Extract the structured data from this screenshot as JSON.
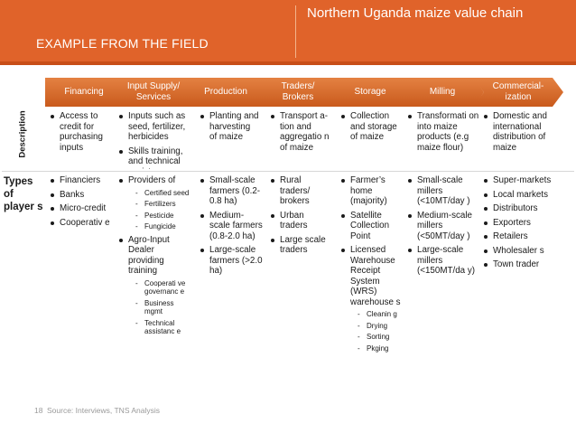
{
  "header": {
    "left_title": "EXAMPLE FROM THE FIELD",
    "right_title": "Northern Uganda maize value chain"
  },
  "stages": [
    {
      "label": "Financing"
    },
    {
      "label": "Input Supply/ Services"
    },
    {
      "label": "Production"
    },
    {
      "label": "Traders/ Brokers"
    },
    {
      "label": "Storage"
    },
    {
      "label": "Milling"
    },
    {
      "label": "Commercial-ization"
    }
  ],
  "rows": {
    "description_label": "Description",
    "types_label": "Types of player s"
  },
  "description": [
    [
      "Access to credit for purchasing inputs"
    ],
    [
      "Inputs such as seed, fertilizer, herbicides",
      "Skills training, and technical assistance"
    ],
    [
      "Planting and harvesting of maize"
    ],
    [
      "Transport a-tion and aggregatio n of maize"
    ],
    [
      "Collection and storage of maize"
    ],
    [
      "Transformati on into maize products (e.g maize flour)"
    ],
    [
      "Domestic and international distribution of maize"
    ]
  ],
  "types": {
    "financing": [
      "Financiers",
      "Banks",
      "Micro-credit",
      "Cooperativ e"
    ],
    "input_supply": {
      "providers_label": "Providers of",
      "providers_items": [
        "Certified seed",
        "Fertilizers",
        "Pesticide",
        "Fungicide"
      ],
      "dealer_label": "Agro-Input Dealer providing training",
      "dealer_items": [
        "Cooperati ve governanc e",
        "Business mgmt",
        "Technical assistanc e"
      ]
    },
    "production": [
      "Small-scale farmers (0.2-0.8 ha)",
      "Medium-scale farmers (0.8-2.0 ha)",
      "Large-scale farmers (>2.0 ha)"
    ],
    "traders": [
      "Rural traders/ brokers",
      "Urban traders",
      "Large scale traders"
    ],
    "storage": {
      "items": [
        "Farmer’s home (majority)",
        "Satellite Collection Point",
        "Licensed Warehouse Receipt System (WRS) warehouse s"
      ],
      "sub_items": [
        "Cleanin g",
        "Drying",
        "Sorting",
        "Pkging"
      ]
    },
    "milling": [
      "Small-scale millers (<10MT/day )",
      "Medium-scale millers (<50MT/day )",
      "Large-scale millers (<150MT/da y)"
    ],
    "commercialization": [
      "Super-markets",
      "Local markets",
      "Distributors",
      "Exporters",
      "Retailers",
      "Wholesaler s",
      "Town trader"
    ]
  },
  "footer": {
    "page_number": "18",
    "source": "Source: Interviews, TNS Analysis"
  }
}
